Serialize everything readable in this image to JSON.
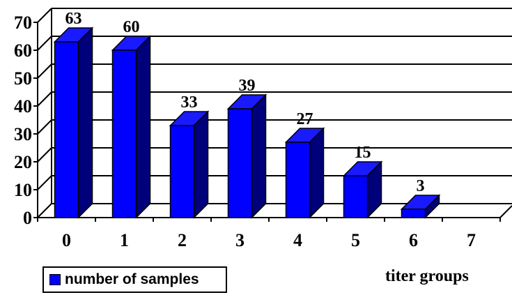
{
  "chart_data": {
    "type": "bar",
    "categories": [
      "0",
      "1",
      "2",
      "3",
      "4",
      "5",
      "6",
      "7"
    ],
    "series": [
      {
        "name": "number of samples",
        "values": [
          63,
          60,
          33,
          39,
          27,
          15,
          3,
          null
        ],
        "color": "#0000ff"
      }
    ],
    "data_labels": [
      "63",
      "60",
      "33",
      "39",
      "27",
      "15",
      "3",
      ""
    ],
    "xlabel": "titer groups",
    "ylabel": "",
    "ylim": [
      0,
      70
    ],
    "yticks": [
      0,
      10,
      20,
      30,
      40,
      50,
      60,
      70
    ],
    "grid": true,
    "legend_position": "bottom-left",
    "style": "3d"
  }
}
